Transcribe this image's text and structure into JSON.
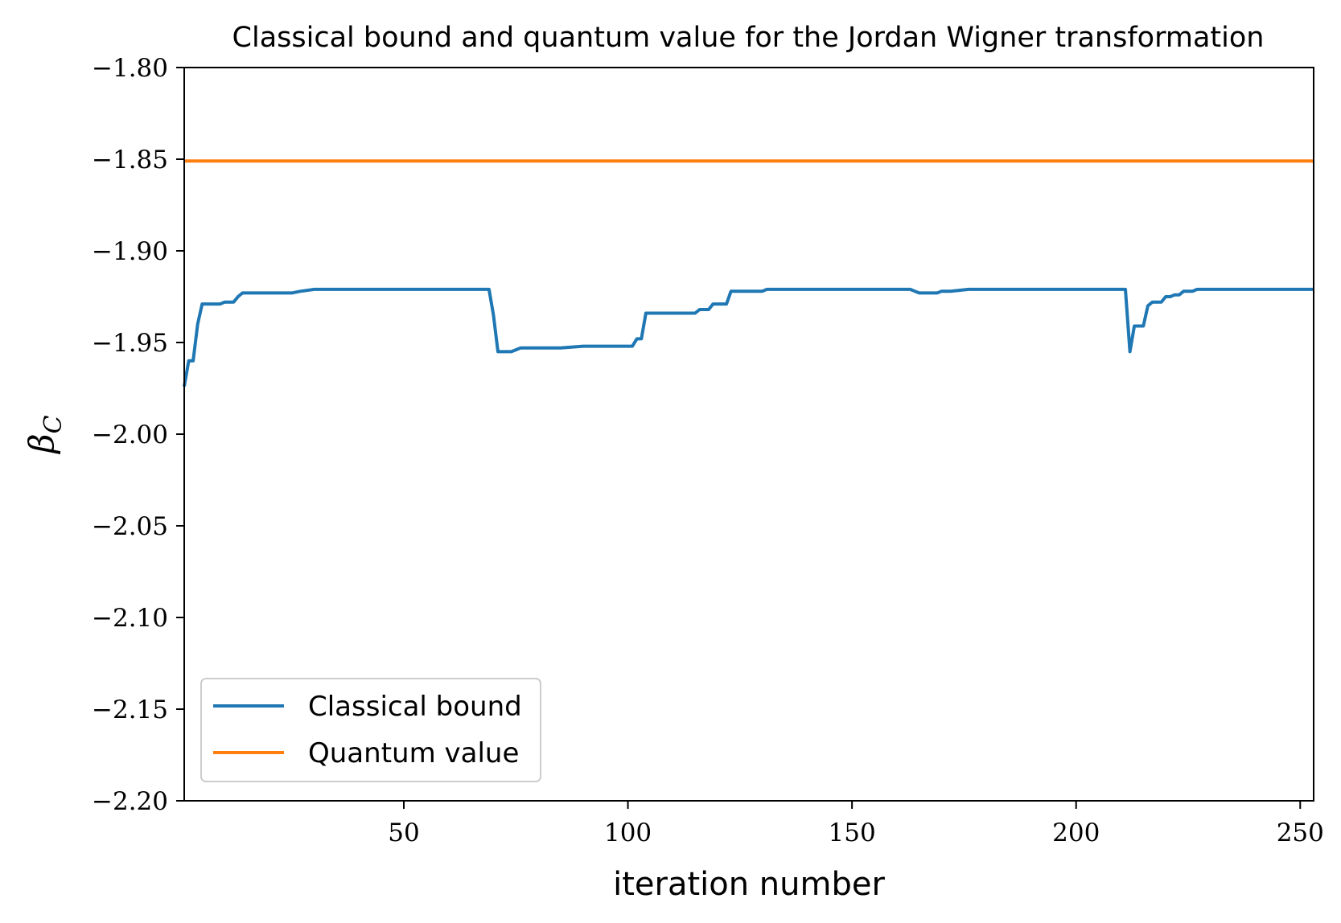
{
  "chart_data": {
    "type": "line",
    "title": "Classical bound and quantum value for the Jordan Wigner transformation",
    "xlabel": "iteration number",
    "ylabel": "β_C",
    "xlim": [
      1,
      253
    ],
    "ylim": [
      -2.2,
      -1.8
    ],
    "x_ticks": [
      50,
      100,
      150,
      200,
      250
    ],
    "x_tick_labels": [
      "50",
      "100",
      "150",
      "200",
      "250"
    ],
    "y_ticks": [
      -1.8,
      -1.85,
      -1.9,
      -1.95,
      -2.0,
      -2.05,
      -2.1,
      -2.15,
      -2.2
    ],
    "y_tick_labels": [
      "−1.80",
      "−1.85",
      "−1.90",
      "−1.95",
      "−2.00",
      "−2.05",
      "−2.10",
      "−2.15",
      "−2.20"
    ],
    "grid": false,
    "legend_position": "lower-left",
    "series": [
      {
        "name": "Classical bound",
        "color": "#1f77b4",
        "x": [
          1,
          2,
          3,
          4,
          5,
          6,
          7,
          8,
          9,
          10,
          11,
          12,
          13,
          14,
          15,
          17,
          20,
          22,
          25,
          27,
          30,
          35,
          40,
          50,
          60,
          69,
          70,
          71,
          72,
          73,
          74,
          75,
          76,
          77,
          78,
          80,
          85,
          90,
          95,
          100,
          101,
          102,
          103,
          104,
          105,
          106,
          110,
          113,
          114,
          115,
          116,
          117,
          118,
          119,
          120,
          121,
          122,
          123,
          124,
          125,
          130,
          131,
          140,
          150,
          160,
          163,
          164,
          165,
          167,
          168,
          169,
          170,
          172,
          176,
          180,
          190,
          200,
          210,
          211,
          212,
          213,
          214,
          215,
          216,
          217,
          218,
          219,
          220,
          221,
          222,
          223,
          224,
          225,
          226,
          227,
          228,
          230,
          235,
          240,
          250,
          253
        ],
        "y": [
          -1.974,
          -1.96,
          -1.96,
          -1.94,
          -1.929,
          -1.929,
          -1.929,
          -1.929,
          -1.929,
          -1.928,
          -1.928,
          -1.928,
          -1.925,
          -1.923,
          -1.923,
          -1.923,
          -1.923,
          -1.923,
          -1.923,
          -1.922,
          -1.921,
          -1.921,
          -1.921,
          -1.921,
          -1.921,
          -1.921,
          -1.935,
          -1.955,
          -1.955,
          -1.955,
          -1.955,
          -1.954,
          -1.953,
          -1.953,
          -1.953,
          -1.953,
          -1.953,
          -1.952,
          -1.952,
          -1.952,
          -1.952,
          -1.948,
          -1.948,
          -1.934,
          -1.934,
          -1.934,
          -1.934,
          -1.934,
          -1.934,
          -1.934,
          -1.932,
          -1.932,
          -1.932,
          -1.929,
          -1.929,
          -1.929,
          -1.929,
          -1.922,
          -1.922,
          -1.922,
          -1.922,
          -1.921,
          -1.921,
          -1.921,
          -1.921,
          -1.921,
          -1.922,
          -1.923,
          -1.923,
          -1.923,
          -1.923,
          -1.922,
          -1.922,
          -1.921,
          -1.921,
          -1.921,
          -1.921,
          -1.921,
          -1.921,
          -1.955,
          -1.941,
          -1.941,
          -1.941,
          -1.93,
          -1.928,
          -1.928,
          -1.928,
          -1.925,
          -1.925,
          -1.924,
          -1.924,
          -1.922,
          -1.922,
          -1.922,
          -1.921,
          -1.921,
          -1.921,
          -1.921,
          -1.921,
          -1.921,
          -1.921
        ]
      },
      {
        "name": "Quantum value",
        "color": "#ff7f0e",
        "x": [
          1,
          253
        ],
        "y": [
          -1.851,
          -1.851
        ]
      }
    ]
  }
}
